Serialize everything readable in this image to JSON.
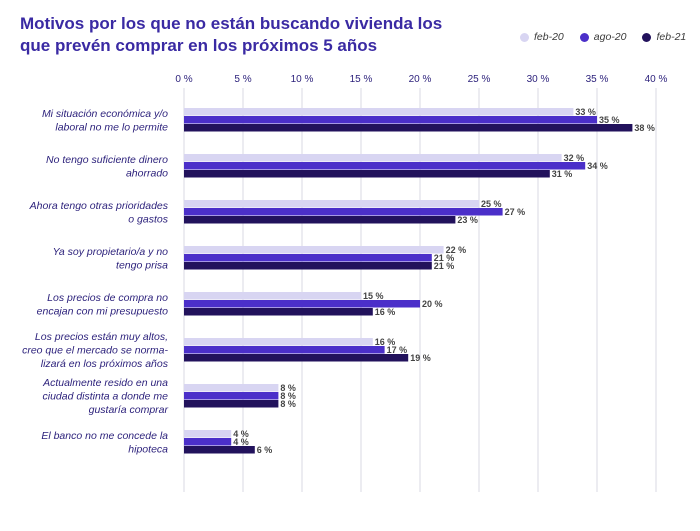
{
  "chart_data": {
    "type": "bar",
    "orientation": "horizontal",
    "title": "Motivos por los que no están buscando vivienda los que prevén comprar en los próximos 5 años",
    "xlim": [
      0,
      40
    ],
    "xticks": [
      "0 %",
      "5 %",
      "10 %",
      "15 %",
      "20 %",
      "25 %",
      "30 %",
      "35 %",
      "40 %"
    ],
    "grid": true,
    "legend_position": "top-right",
    "categories": [
      [
        "Mi situación económica y/o",
        "laboral no me lo permite"
      ],
      [
        "No tengo suficiente dinero",
        "ahorrado"
      ],
      [
        "Ahora tengo otras prioridades",
        "o gastos"
      ],
      [
        "Ya soy propietario/a y no",
        "tengo prisa"
      ],
      [
        "Los precios de compra no",
        "encajan con mi presupuesto"
      ],
      [
        "Los precios están muy altos,",
        "creo que el mercado se norma-",
        "lizará en los próximos años"
      ],
      [
        "Actualmente resido en una",
        "ciudad distinta a donde me",
        "gustaría comprar"
      ],
      [
        "El banco no me concede la",
        "hipoteca"
      ]
    ],
    "series": [
      {
        "name": "feb-20",
        "color": "#d8d5f2",
        "values": [
          33,
          32,
          25,
          22,
          15,
          16,
          8,
          4
        ]
      },
      {
        "name": "ago-20",
        "color": "#4b2fc9",
        "values": [
          35,
          34,
          27,
          21,
          20,
          17,
          8,
          4
        ]
      },
      {
        "name": "feb-21",
        "color": "#22125c",
        "values": [
          38,
          31,
          23,
          21,
          16,
          19,
          8,
          6
        ]
      }
    ],
    "value_suffix": " %"
  }
}
